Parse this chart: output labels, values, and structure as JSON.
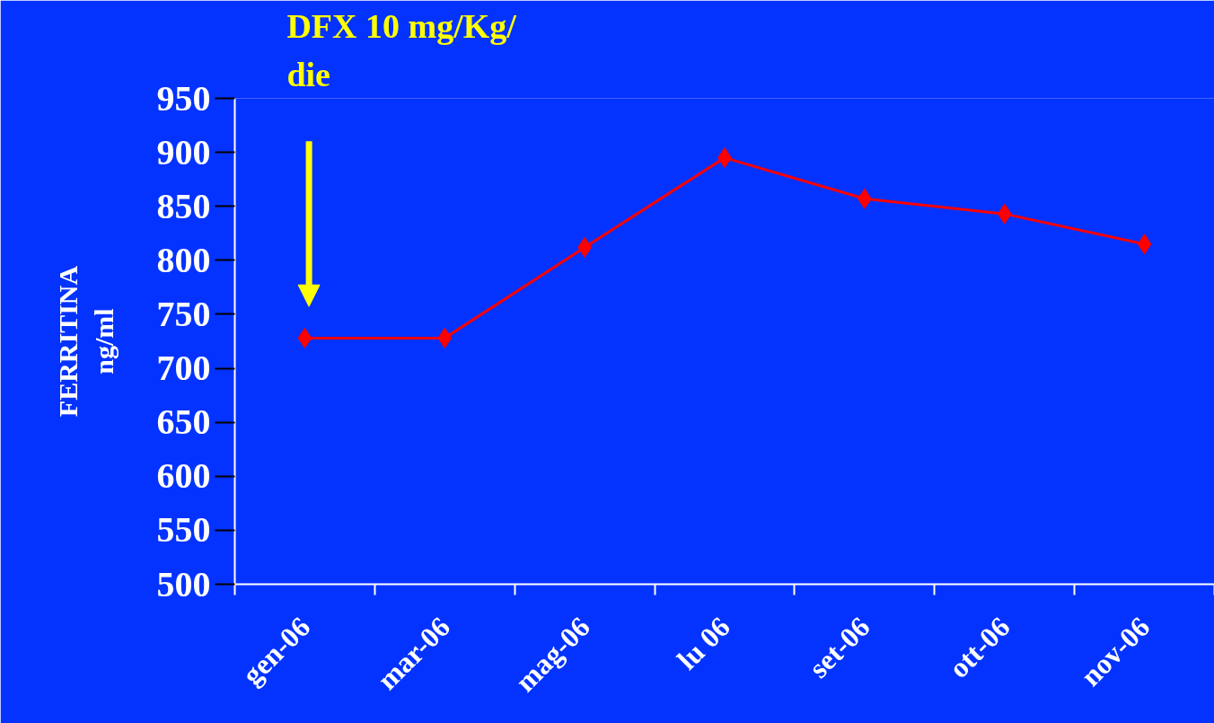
{
  "chart_data": {
    "type": "line",
    "ylabel": "FERRITINA\nng/ml",
    "categories": [
      "gen-06",
      "mar-06",
      "mag-06",
      "lu 06",
      "set-06",
      "ott-06",
      "nov-06"
    ],
    "series": [
      {
        "color": "#ff0000",
        "values": [
          728,
          728,
          812,
          895,
          857,
          843,
          815
        ]
      }
    ],
    "ylim": [
      500,
      950
    ],
    "yticks": [
      500,
      550,
      600,
      650,
      700,
      750,
      800,
      850,
      900,
      950
    ],
    "grid": false,
    "marker": "diamond",
    "line_style": "solid",
    "annotations": [
      "DFX 10 mg/Kg/\ndie"
    ]
  }
}
